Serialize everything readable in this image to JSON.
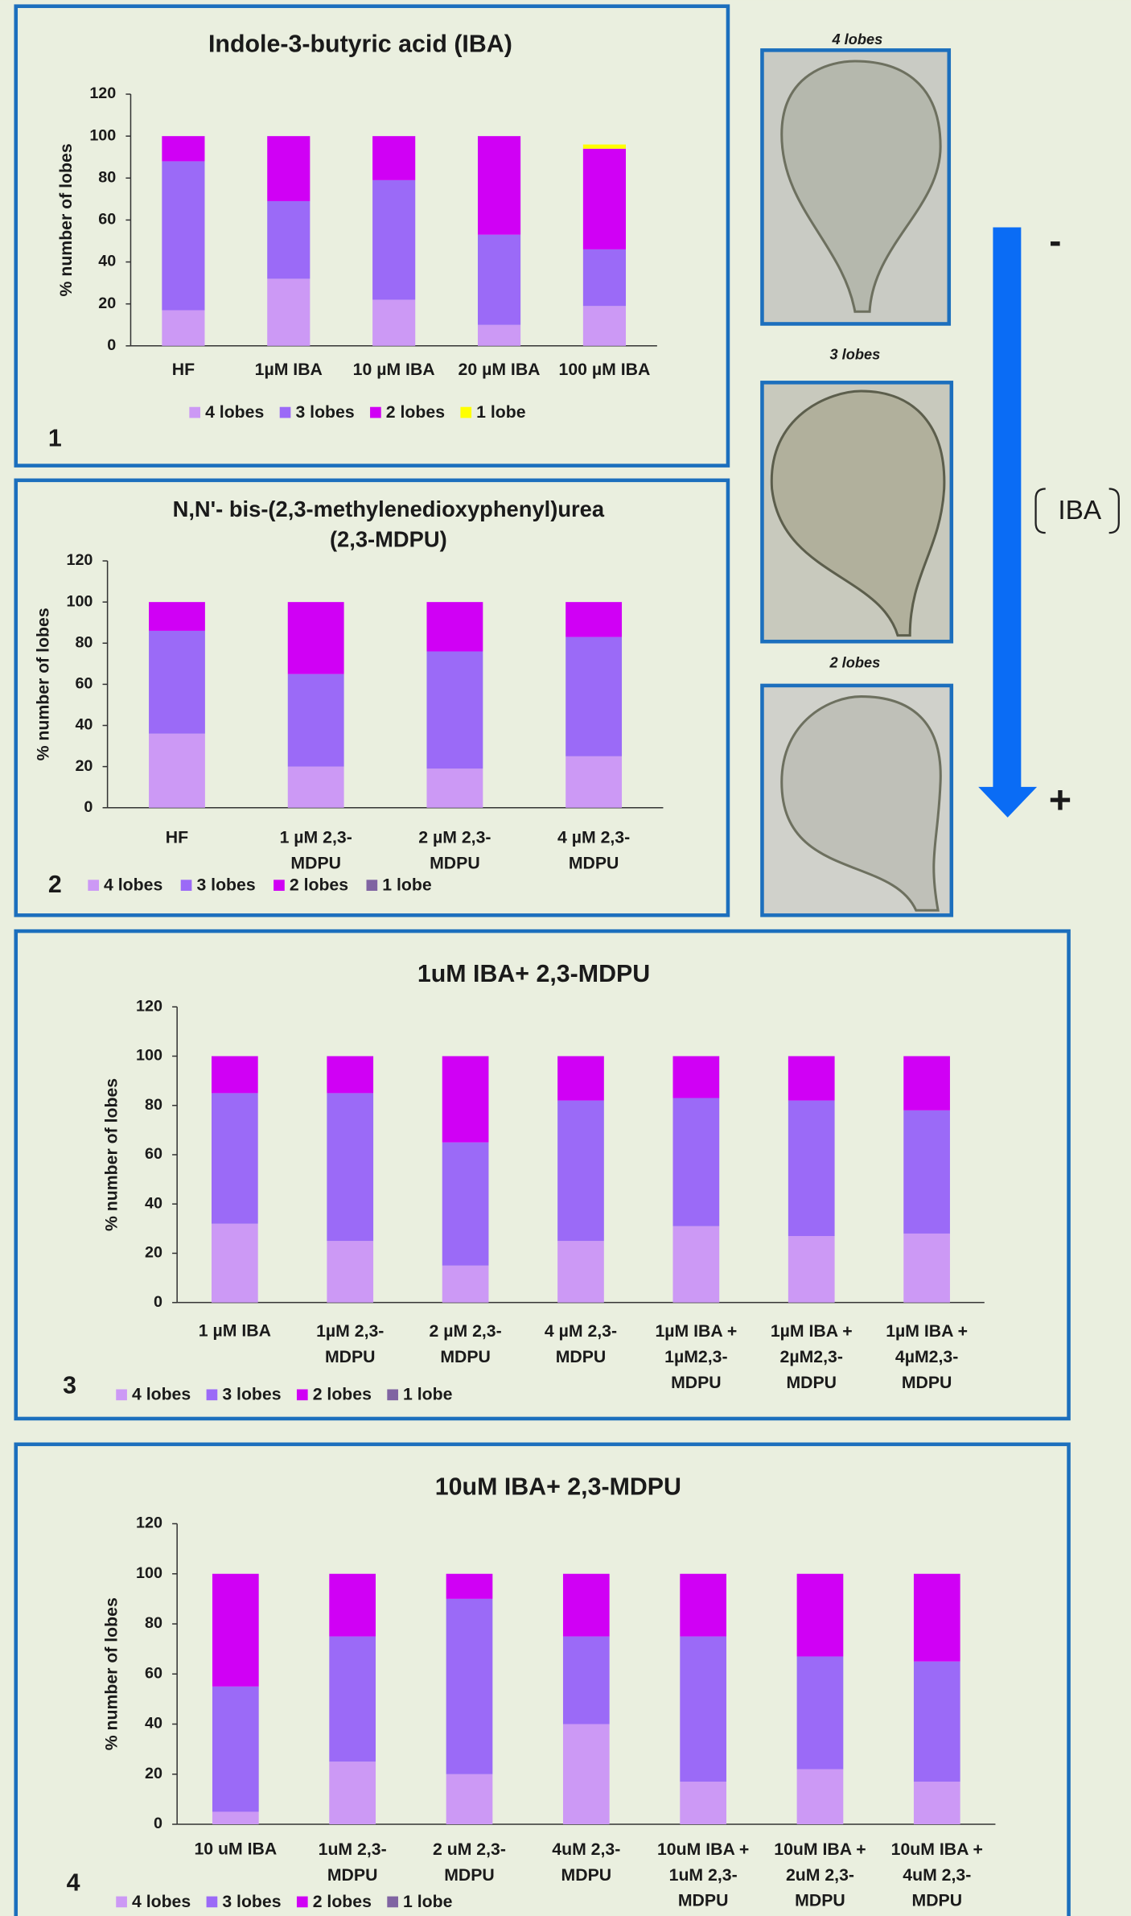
{
  "chart_data": [
    {
      "type": "bar",
      "stacked": true,
      "title": "Indole-3-butyric acid (IBA)",
      "panel_label": "1",
      "y_label": "% number of lobes",
      "categories": [
        "HF",
        "1µM IBA",
        "10 µM IBA",
        "20 µM IBA",
        "100 µM IBA"
      ],
      "series": [
        {
          "name": "4 lobes",
          "color": "#cc99f5",
          "values": [
            17,
            32,
            22,
            10,
            19
          ]
        },
        {
          "name": "3 lobes",
          "color": "#9b6af7",
          "values": [
            71,
            37,
            57,
            43,
            27
          ]
        },
        {
          "name": "2 lobes",
          "color": "#d000f5",
          "values": [
            12,
            31,
            21,
            47,
            48
          ]
        },
        {
          "name": "1 lobe",
          "color": "#ffff00",
          "values": [
            0,
            0,
            0,
            0,
            2
          ]
        }
      ],
      "ylim": [
        0,
        120
      ],
      "yticks": [
        0,
        20,
        40,
        60,
        80,
        100,
        120
      ]
    },
    {
      "type": "bar",
      "stacked": true,
      "title": "N,N'- bis-(2,3-methylenedioxyphenyl)urea\n(2,3-MDPU)",
      "panel_label": "2",
      "y_label": "% number of lobes",
      "categories": [
        "HF",
        "1 µM 2,3-\nMDPU",
        "2 µM 2,3-\nMDPU",
        "4 µM  2,3-\nMDPU"
      ],
      "series": [
        {
          "name": "4 lobes",
          "color": "#cc99f5",
          "values": [
            36,
            20,
            19,
            25
          ]
        },
        {
          "name": "3 lobes",
          "color": "#9b6af7",
          "values": [
            50,
            45,
            57,
            58
          ]
        },
        {
          "name": "2 lobes",
          "color": "#d000f5",
          "values": [
            14,
            35,
            24,
            17
          ]
        },
        {
          "name": "1 lobe",
          "color": "#8064a2",
          "values": [
            0,
            0,
            0,
            0
          ]
        }
      ],
      "ylim": [
        0,
        120
      ],
      "yticks": [
        0,
        20,
        40,
        60,
        80,
        100,
        120
      ]
    },
    {
      "type": "bar",
      "stacked": true,
      "title": "1uM IBA+ 2,3-MDPU",
      "panel_label": "3",
      "y_label": "% number of lobes",
      "categories": [
        "1 µM IBA",
        "1µM 2,3-\nMDPU",
        "2 µM 2,3-\nMDPU",
        "4 µM 2,3-\nMDPU",
        "1µM IBA +\n1µM2,3-\nMDPU",
        "1µM IBA +\n2µM2,3-\nMDPU",
        "1µM IBA +\n4µM2,3-\nMDPU"
      ],
      "series": [
        {
          "name": "4 lobes",
          "color": "#cc99f5",
          "values": [
            32,
            25,
            15,
            25,
            31,
            27,
            28
          ]
        },
        {
          "name": "3 lobes",
          "color": "#9b6af7",
          "values": [
            53,
            60,
            50,
            57,
            52,
            55,
            50
          ]
        },
        {
          "name": "2 lobes",
          "color": "#d000f5",
          "values": [
            15,
            15,
            35,
            18,
            17,
            18,
            22
          ]
        },
        {
          "name": "1 lobe",
          "color": "#8064a2",
          "values": [
            0,
            0,
            0,
            0,
            0,
            0,
            0
          ]
        }
      ],
      "ylim": [
        0,
        120
      ],
      "yticks": [
        0,
        20,
        40,
        60,
        80,
        100,
        120
      ]
    },
    {
      "type": "bar",
      "stacked": true,
      "title": "10uM IBA+ 2,3-MDPU",
      "panel_label": "4",
      "y_label": "% number of lobes",
      "categories": [
        "10 uM IBA",
        "1uM 2,3-\nMDPU",
        "2 uM 2,3-\nMDPU",
        "4uM 2,3-\nMDPU",
        "10uM IBA +\n1uM 2,3-\nMDPU",
        "10uM IBA +\n2uM 2,3-\nMDPU",
        "10uM IBA +\n4uM 2,3-\nMDPU"
      ],
      "series": [
        {
          "name": "4 lobes",
          "color": "#cc99f5",
          "values": [
            5,
            25,
            20,
            40,
            17,
            22,
            17
          ]
        },
        {
          "name": "3 lobes",
          "color": "#9b6af7",
          "values": [
            50,
            50,
            70,
            35,
            58,
            45,
            48
          ]
        },
        {
          "name": "2 lobes",
          "color": "#d000f5",
          "values": [
            45,
            25,
            10,
            25,
            25,
            33,
            35
          ]
        },
        {
          "name": "1 lobe",
          "color": "#8064a2",
          "values": [
            0,
            0,
            0,
            0,
            0,
            0,
            0
          ]
        }
      ],
      "ylim": [
        0,
        120
      ],
      "yticks": [
        0,
        20,
        40,
        60,
        80,
        100,
        120
      ]
    }
  ],
  "side_panel": {
    "images": [
      {
        "label": "4 lobes"
      },
      {
        "label": "3 lobes"
      },
      {
        "label": "2 lobes"
      }
    ],
    "arrow_label": "IBA",
    "minus": "-",
    "plus": "+"
  }
}
